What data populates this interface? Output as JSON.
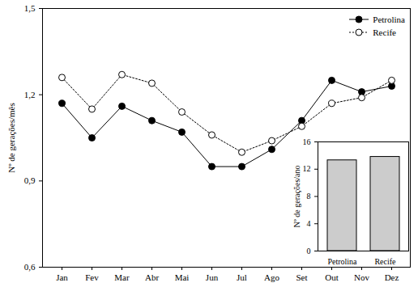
{
  "chart_data": [
    {
      "type": "line",
      "categories": [
        "Jan",
        "Fev",
        "Mar",
        "Abr",
        "Mai",
        "Jun",
        "Jul",
        "Ago",
        "Set",
        "Out",
        "Nov",
        "Dez"
      ],
      "y_label": "Nº de gerações/mês",
      "ylim": [
        0.6,
        1.5
      ],
      "yticks": [
        {
          "value": 0.6,
          "label": "0,6"
        },
        {
          "value": 0.9,
          "label": "0,9"
        },
        {
          "value": 1.2,
          "label": "1,2"
        },
        {
          "value": 1.5,
          "label": "1,5"
        }
      ],
      "grid": false,
      "legend": "top-right",
      "series": [
        {
          "name": "Petrolina",
          "color": "#000000",
          "marker": "filled circle",
          "line_style": "solid",
          "values": [
            1.17,
            1.05,
            1.16,
            1.11,
            1.07,
            0.95,
            0.95,
            1.01,
            1.11,
            1.25,
            1.21,
            1.23
          ]
        },
        {
          "name": "Recife",
          "color": "#000000",
          "marker": "open circle",
          "line_style": "dotted",
          "values": [
            1.26,
            1.15,
            1.27,
            1.24,
            1.14,
            1.06,
            1.0,
            1.04,
            1.09,
            1.17,
            1.19,
            1.25
          ]
        }
      ]
    },
    {
      "type": "bar",
      "categories": [
        "Petrolina",
        "Recife"
      ],
      "values": [
        13.3,
        13.8
      ],
      "color": "#cccccc",
      "y_label": "Nº de gerações/ano",
      "ylim": [
        0,
        16
      ],
      "yticks": [
        0,
        4,
        8,
        12,
        16
      ],
      "grid": false
    }
  ]
}
